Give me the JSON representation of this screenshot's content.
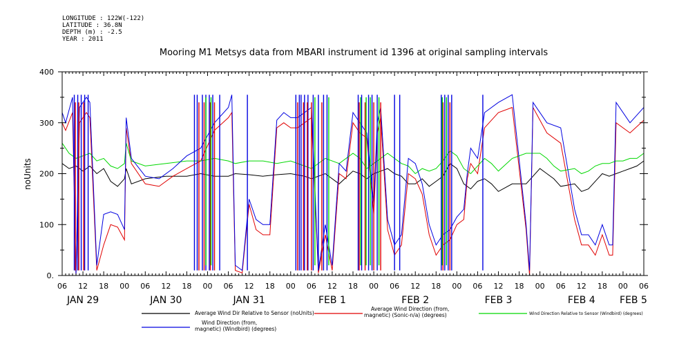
{
  "meta": {
    "longitude": "LONGITUDE : 122W(-122)",
    "latitude": "LATITUDE : 36.8N",
    "depth": "DEPTH (m) : -2.5",
    "year": "YEAR : 2011"
  },
  "chart_data": {
    "type": "line",
    "title": "Mooring M1 Metsys data from MBARI instrument id 1396 at original sampling intervals",
    "ylabel": "noUnits",
    "ylim": [
      0,
      400
    ],
    "y_ticks": [
      "0.",
      "100",
      "200",
      "300",
      "400"
    ],
    "x_range_hours": [
      0,
      168
    ],
    "x_hour_labels": [
      "06",
      "12",
      "18",
      "00",
      "06",
      "12",
      "18",
      "00",
      "06",
      "12",
      "18",
      "00",
      "06",
      "12",
      "18",
      "00",
      "06",
      "12",
      "18",
      "00",
      "06",
      "12",
      "18",
      "00",
      "06",
      "12",
      "18",
      "00",
      "06"
    ],
    "day_labels": [
      "JAN 29",
      "JAN 30",
      "JAN 31",
      "FEB  1",
      "FEB  2",
      "FEB  3",
      "FEB  4",
      "FEB 5"
    ],
    "grid": false,
    "legend_position": "bottom",
    "colors": {
      "black": "#000000",
      "red": "#e00000",
      "green": "#00d800",
      "blue": "#0000e0"
    },
    "series": [
      {
        "name": "Average Wind Dir Relative to Sensor (noUnits)",
        "color": "black",
        "x": [
          0,
          2,
          4,
          6,
          8,
          10,
          12,
          14,
          16,
          18,
          18.5,
          20,
          24,
          30,
          36,
          40,
          44,
          48,
          50,
          54,
          58,
          62,
          66,
          70,
          72,
          76,
          80,
          84,
          86,
          88,
          90,
          92,
          94,
          96,
          98,
          100,
          102,
          104,
          106,
          108,
          110,
          112,
          114,
          116,
          118,
          120,
          122,
          124,
          126,
          130,
          134,
          138,
          140,
          142,
          144,
          148,
          150,
          152,
          154,
          156,
          158,
          160,
          162,
          164,
          166,
          168
        ],
        "y": [
          220,
          210,
          215,
          205,
          215,
          200,
          210,
          185,
          175,
          190,
          210,
          180,
          190,
          195,
          195,
          200,
          195,
          195,
          200,
          198,
          195,
          198,
          200,
          195,
          190,
          200,
          180,
          205,
          200,
          190,
          200,
          205,
          210,
          200,
          195,
          180,
          180,
          190,
          175,
          185,
          195,
          220,
          210,
          180,
          170,
          185,
          190,
          180,
          165,
          180,
          180,
          210,
          200,
          190,
          175,
          180,
          165,
          170,
          185,
          200,
          195,
          200,
          205,
          210,
          215,
          225
        ]
      },
      {
        "name": "Average Wind Direction (from, magnetic) (Sonic-n/a) (degrees)",
        "color": "red",
        "x": [
          0,
          1,
          3,
          4,
          5,
          6,
          7,
          8,
          10,
          12,
          14,
          16,
          18,
          18.5,
          20,
          24,
          28,
          32,
          36,
          40,
          44,
          48,
          49,
          50,
          52,
          54,
          56,
          58,
          60,
          62,
          64,
          66,
          68,
          70,
          72,
          74,
          76,
          78,
          80,
          82,
          84,
          86,
          88,
          90,
          91,
          92,
          94,
          96,
          98,
          100,
          102,
          104,
          106,
          108,
          110,
          112,
          114,
          116,
          117,
          118,
          120,
          122,
          126,
          130,
          134,
          135,
          136,
          140,
          144,
          148,
          150,
          152,
          154,
          156,
          158,
          159,
          160,
          164,
          168
        ],
        "y": [
          300,
          285,
          320,
          0,
          300,
          310,
          320,
          310,
          10,
          60,
          100,
          95,
          70,
          290,
          220,
          180,
          175,
          195,
          210,
          225,
          285,
          310,
          320,
          10,
          5,
          140,
          90,
          80,
          80,
          290,
          300,
          290,
          290,
          300,
          310,
          5,
          80,
          10,
          200,
          190,
          300,
          280,
          270,
          120,
          280,
          310,
          90,
          40,
          60,
          200,
          190,
          160,
          80,
          40,
          60,
          70,
          100,
          110,
          190,
          220,
          200,
          290,
          320,
          330,
          90,
          0,
          330,
          280,
          260,
          110,
          60,
          60,
          40,
          80,
          40,
          40,
          300,
          280,
          305
        ]
      },
      {
        "name": "Wind Direction Relative to Sensor (Windbird) (degrees)",
        "color": "green",
        "x": [
          0,
          2,
          4,
          6,
          8,
          10,
          12,
          14,
          16,
          18,
          18.5,
          20,
          24,
          30,
          36,
          40,
          44,
          48,
          50,
          54,
          58,
          62,
          66,
          70,
          72,
          76,
          80,
          84,
          86,
          88,
          90,
          92,
          94,
          96,
          98,
          100,
          102,
          104,
          106,
          108,
          110,
          112,
          114,
          116,
          118,
          120,
          122,
          124,
          126,
          130,
          134,
          138,
          140,
          142,
          144,
          148,
          150,
          152,
          154,
          156,
          158,
          160,
          162,
          164,
          166,
          168
        ],
        "y": [
          260,
          240,
          230,
          235,
          240,
          225,
          230,
          215,
          210,
          220,
          260,
          225,
          215,
          220,
          225,
          225,
          230,
          225,
          220,
          225,
          225,
          220,
          225,
          215,
          210,
          230,
          220,
          240,
          230,
          210,
          220,
          230,
          240,
          230,
          220,
          215,
          200,
          210,
          205,
          210,
          225,
          245,
          235,
          210,
          200,
          215,
          230,
          220,
          205,
          230,
          240,
          240,
          230,
          215,
          205,
          210,
          200,
          205,
          215,
          220,
          220,
          225,
          225,
          230,
          230,
          240
        ]
      },
      {
        "name": "Wind Direction (from, magnetic) (Windbird) (degrees)",
        "color": "blue",
        "x": [
          0,
          1,
          3,
          4,
          5,
          6,
          7,
          8,
          10,
          12,
          14,
          16,
          18,
          18.5,
          20,
          24,
          28,
          32,
          36,
          40,
          44,
          48,
          49,
          50,
          52,
          54,
          56,
          58,
          60,
          62,
          64,
          66,
          68,
          70,
          72,
          74,
          76,
          78,
          80,
          82,
          84,
          86,
          88,
          90,
          91,
          92,
          94,
          96,
          98,
          100,
          102,
          104,
          106,
          108,
          110,
          112,
          114,
          116,
          117,
          118,
          120,
          122,
          126,
          130,
          134,
          135,
          136,
          140,
          144,
          148,
          150,
          152,
          154,
          156,
          158,
          159,
          160,
          164,
          168
        ],
        "y": [
          320,
          300,
          350,
          0,
          330,
          340,
          350,
          340,
          20,
          120,
          125,
          120,
          90,
          310,
          230,
          195,
          190,
          210,
          235,
          250,
          300,
          330,
          355,
          20,
          10,
          150,
          110,
          100,
          100,
          305,
          320,
          310,
          310,
          320,
          330,
          10,
          100,
          20,
          220,
          205,
          320,
          300,
          280,
          140,
          300,
          330,
          110,
          60,
          80,
          230,
          220,
          180,
          100,
          60,
          80,
          90,
          115,
          130,
          200,
          250,
          230,
          320,
          340,
          355,
          100,
          10,
          340,
          300,
          290,
          130,
          80,
          80,
          60,
          100,
          60,
          60,
          340,
          300,
          330
        ]
      }
    ],
    "spikes": [
      {
        "color": "blue",
        "x": [
          3.5,
          4.5,
          5.5,
          6.5,
          7.5,
          38.2,
          39,
          40.5,
          41.5,
          42.5,
          43.5,
          45.5,
          53.5,
          67.5,
          68.5,
          69,
          70,
          71,
          72.5,
          74,
          75.5,
          76.5,
          85.5,
          86.5,
          88.5,
          89.5,
          91,
          96,
          97.5,
          109.5,
          110.5,
          111.5,
          112.5,
          121.5
        ],
        "lo": 10,
        "hi": 355
      },
      {
        "color": "red",
        "x": [
          3.8,
          4.8,
          6.2,
          39.5,
          41,
          42.8,
          44,
          68,
          69.7,
          70.8,
          72,
          75,
          85.8,
          87.5,
          90,
          92,
          110,
          112
        ],
        "lo": 10,
        "hi": 340
      },
      {
        "color": "green",
        "x": [
          41.5,
          43,
          73,
          77,
          86.2,
          87.8,
          89,
          91.5,
          109.8,
          111
        ],
        "lo": 20,
        "hi": 350
      }
    ]
  }
}
